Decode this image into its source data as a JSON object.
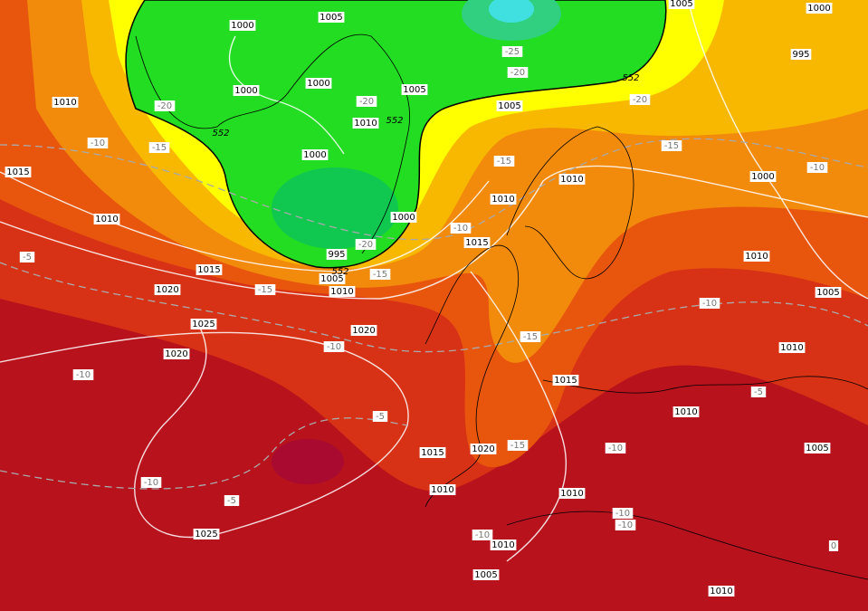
{
  "isobar_labels": [
    1000,
    1005,
    1000,
    1000,
    1005,
    1010,
    1000,
    1000,
    995,
    1005,
    1010,
    1005,
    1010,
    1015,
    1010,
    1015,
    1020,
    1010,
    1015,
    1010,
    1025,
    1020,
    1020,
    1015,
    1015,
    1020,
    1010,
    1010,
    1010,
    1010,
    1005,
    1025,
    1010,
    1005,
    1010,
    1005,
    1010,
    1000,
    995,
    1000,
    1005
  ],
  "temperature_labels": [
    -20,
    -15,
    -10,
    -20,
    -20,
    -15,
    -15,
    -10,
    -15,
    -25,
    -20,
    -20,
    -15,
    -10,
    -10,
    -5,
    -10,
    -10,
    -15,
    -5,
    -15,
    -10,
    -10,
    -5,
    -10,
    -10,
    -10,
    -5,
    0
  ],
  "height_labels": [
    552,
    552,
    552,
    552
  ]
}
